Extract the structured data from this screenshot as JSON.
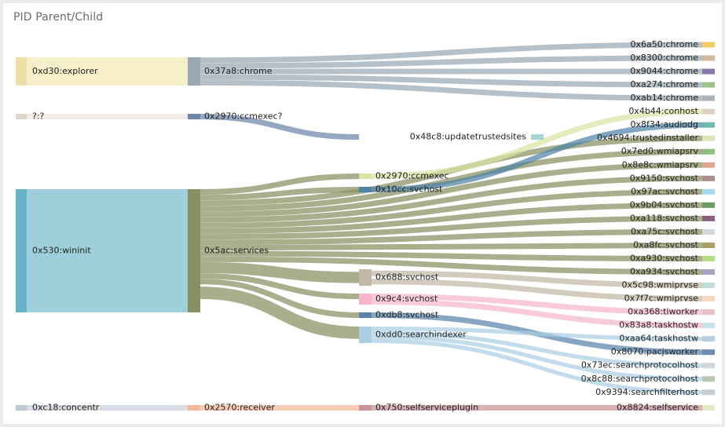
{
  "panel": {
    "title": "PID Parent/Child"
  },
  "chart_data": {
    "type": "sankey",
    "title": "PID Parent/Child",
    "columns": [
      [
        {
          "id": "0xd30:explorer",
          "color": "#f7efca",
          "bar": "#ecdfa8"
        },
        {
          "id": "?:?",
          "color": "#f1ede6",
          "bar": "#ddd6cc"
        },
        {
          "id": "0x530:wininit",
          "color": "#9fcfdb",
          "bar": "#67b4c8"
        },
        {
          "id": "0xc18:concentr",
          "color": "#d7dde2",
          "bar": "#c0c9d0"
        }
      ],
      [
        {
          "id": "0x37a8:chrome",
          "color": "#9aa8b3"
        },
        {
          "id": "0x2970:ccmexec?",
          "color": "#6d87a6"
        },
        {
          "id": "0x5ac:services",
          "color": "#888f60"
        },
        {
          "id": "0x2570:receiver",
          "color": "#f2b99a"
        }
      ],
      [
        {
          "id": "0x48c8:updatetrustedsites",
          "color": "#a9d4d4"
        },
        {
          "id": "0x2970:ccmexec",
          "color": "#dce3a4"
        },
        {
          "id": "0x10cc:svchost",
          "color": "#4f84a8"
        },
        {
          "id": "0x688:svchost",
          "color": "#c1b8a6"
        },
        {
          "id": "0x9c4:svchost",
          "color": "#f7b6ce"
        },
        {
          "id": "0xdb8:svchost",
          "color": "#5a82aa"
        },
        {
          "id": "0xdd0:searchindexer",
          "color": "#aacfe3"
        },
        {
          "id": "0x750:selfserviceplugin",
          "color": "#c9939a"
        }
      ],
      [
        {
          "id": "0x6a50:chrome",
          "color": "#f1cd63"
        },
        {
          "id": "0x8300:chrome",
          "color": "#d4b89c"
        },
        {
          "id": "0x9044:chrome",
          "color": "#8b76a8"
        },
        {
          "id": "0xa274:chrome",
          "color": "#9ec28a"
        },
        {
          "id": "0xab14:chrome",
          "color": "#a9b2ba"
        },
        {
          "id": "0x4b44:conhost",
          "color": "#e2cfc4"
        },
        {
          "id": "0x8f34:audiodg",
          "color": "#72b8ac"
        },
        {
          "id": "0x4694:trustedinstaller",
          "color": "#e1e2b8"
        },
        {
          "id": "0x7ed0:wmiapsrv",
          "color": "#8cc07e"
        },
        {
          "id": "0x8e8c:wmiapsrv",
          "color": "#e2a48d"
        },
        {
          "id": "0x9150:svchost",
          "color": "#a88f87"
        },
        {
          "id": "0x97ac:svchost",
          "color": "#a5dcea"
        },
        {
          "id": "0x9b04:svchost",
          "color": "#6e9c62"
        },
        {
          "id": "0xa118:svchost",
          "color": "#8a5f84"
        },
        {
          "id": "0xa75c:svchost",
          "color": "#d2d7dc"
        },
        {
          "id": "0xa8fc:svchost",
          "color": "#b19c6c"
        },
        {
          "id": "0xa930:svchost",
          "color": "#b5dc84"
        },
        {
          "id": "0xa934:svchost",
          "color": "#a9a3c4"
        },
        {
          "id": "0x5c98:wmiprvse",
          "color": "#c4dcd8"
        },
        {
          "id": "0x7f7c:wmiprvse",
          "color": "#f6d7c0"
        },
        {
          "id": "0xa368:tiworker",
          "color": "#e5c0c7"
        },
        {
          "id": "0x83a8:taskhostw",
          "color": "#c6e4ea"
        },
        {
          "id": "0xaa64:taskhostw",
          "color": "#b5cfe3"
        },
        {
          "id": "0x8070:pacjsworker",
          "color": "#6c8db0"
        },
        {
          "id": "0x73ec:searchprotocolhost",
          "color": "#d0d8de"
        },
        {
          "id": "0x8c88:searchprotocolhost",
          "color": "#b8c9b0"
        },
        {
          "id": "0x9394:searchfilterhost",
          "color": "#c5cdd5"
        },
        {
          "id": "0x8824:selfservice",
          "color": "#e6e8c2"
        }
      ]
    ],
    "links": [
      [
        "0xd30:explorer",
        "0x37a8:chrome",
        5
      ],
      [
        "?:?",
        "0x2970:ccmexec?",
        1
      ],
      [
        "0x530:wininit",
        "0x5ac:services",
        22
      ],
      [
        "0xc18:concentr",
        "0x2570:receiver",
        1
      ],
      [
        "0x37a8:chrome",
        "0x6a50:chrome",
        1
      ],
      [
        "0x37a8:chrome",
        "0x8300:chrome",
        1
      ],
      [
        "0x37a8:chrome",
        "0x9044:chrome",
        1
      ],
      [
        "0x37a8:chrome",
        "0xa274:chrome",
        1
      ],
      [
        "0x37a8:chrome",
        "0xab14:chrome",
        1
      ],
      [
        "0x2970:ccmexec?",
        "0x48c8:updatetrustedsites",
        1
      ],
      [
        "0x5ac:services",
        "0x2970:ccmexec",
        1
      ],
      [
        "0x5ac:services",
        "0x10cc:svchost",
        1
      ],
      [
        "0x5ac:services",
        "0x4694:trustedinstaller",
        1
      ],
      [
        "0x5ac:services",
        "0x7ed0:wmiapsrv",
        1
      ],
      [
        "0x5ac:services",
        "0x8e8c:wmiapsrv",
        1
      ],
      [
        "0x5ac:services",
        "0x9150:svchost",
        1
      ],
      [
        "0x5ac:services",
        "0x97ac:svchost",
        1
      ],
      [
        "0x5ac:services",
        "0x9b04:svchost",
        1
      ],
      [
        "0x5ac:services",
        "0xa118:svchost",
        1
      ],
      [
        "0x5ac:services",
        "0xa75c:svchost",
        1
      ],
      [
        "0x5ac:services",
        "0xa8fc:svchost",
        1
      ],
      [
        "0x5ac:services",
        "0xa930:svchost",
        1
      ],
      [
        "0x5ac:services",
        "0xa934:svchost",
        1
      ],
      [
        "0x5ac:services",
        "0x688:svchost",
        2
      ],
      [
        "0x5ac:services",
        "0x9c4:svchost",
        1
      ],
      [
        "0x5ac:services",
        "0xdb8:svchost",
        1
      ],
      [
        "0x5ac:services",
        "0xdd0:searchindexer",
        3
      ],
      [
        "0x2970:ccmexec",
        "0x4b44:conhost",
        1
      ],
      [
        "0x10cc:svchost",
        "0x8f34:audiodg",
        1
      ],
      [
        "0x688:svchost",
        "0x5c98:wmiprvse",
        1
      ],
      [
        "0x688:svchost",
        "0x7f7c:wmiprvse",
        1
      ],
      [
        "0x9c4:svchost",
        "0xa368:tiworker",
        1
      ],
      [
        "0x9c4:svchost",
        "0x83a8:taskhostw",
        1
      ],
      [
        "0xdb8:svchost",
        "0x8070:pacjsworker",
        1
      ],
      [
        "0xdd0:searchindexer",
        "0xaa64:taskhostw",
        1
      ],
      [
        "0xdd0:searchindexer",
        "0x73ec:searchprotocolhost",
        1
      ],
      [
        "0xdd0:searchindexer",
        "0x8c88:searchprotocolhost",
        1
      ],
      [
        "0xdd0:searchindexer",
        "0x9394:searchfilterhost",
        1
      ],
      [
        "0x2570:receiver",
        "0x750:selfserviceplugin",
        1
      ],
      [
        "0x750:selfserviceplugin",
        "0x8824:selfservice",
        1
      ]
    ]
  }
}
